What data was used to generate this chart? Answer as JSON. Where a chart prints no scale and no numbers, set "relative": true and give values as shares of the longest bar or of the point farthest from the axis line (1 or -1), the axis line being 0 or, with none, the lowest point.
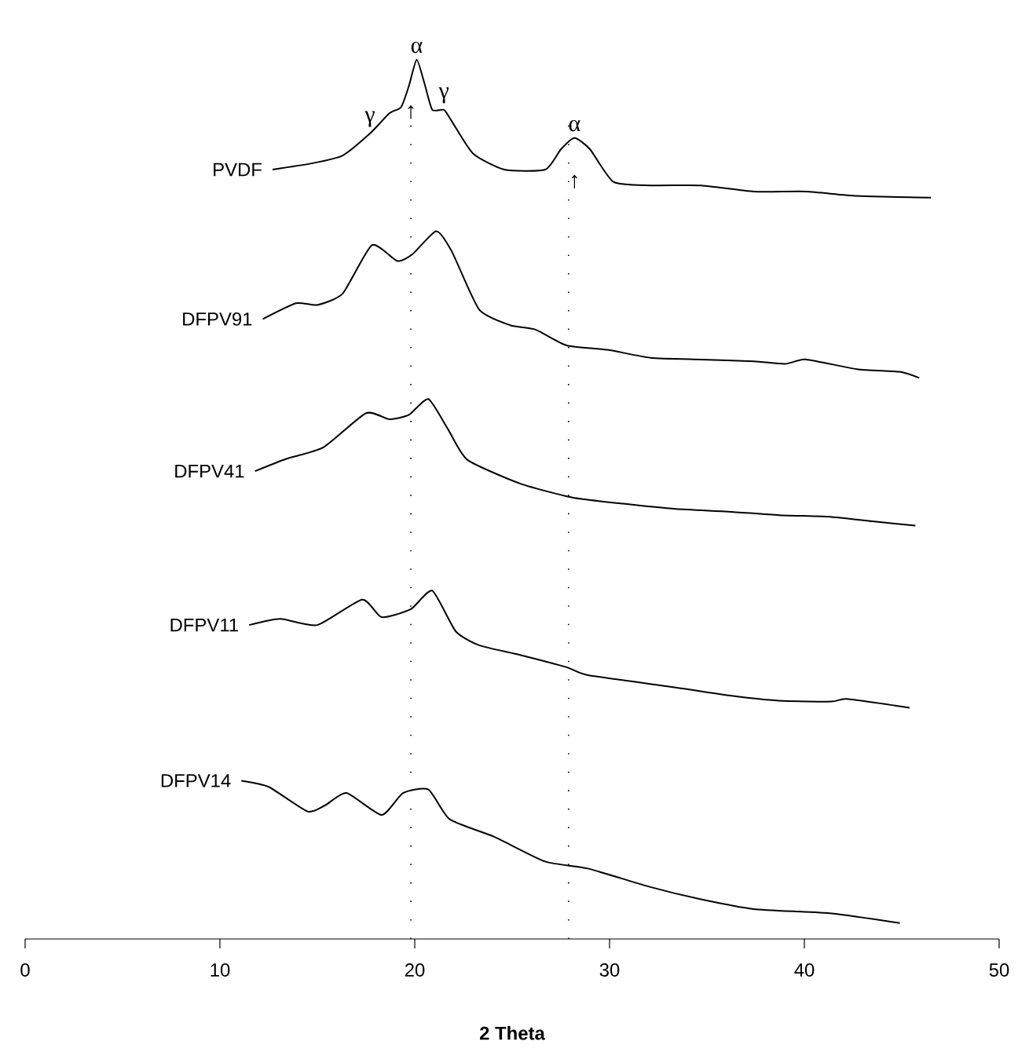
{
  "chart_data": {
    "type": "line",
    "relative": true,
    "xlabel": "2 Theta",
    "xlim": [
      0,
      50
    ],
    "xticks": [
      0,
      10,
      20,
      30,
      40,
      50
    ],
    "series": [
      {
        "name": "PVDF",
        "color": "#000000",
        "x": [
          12.7,
          14.7,
          16.3,
          17.7,
          18.7,
          19.3,
          19.7,
          20.1,
          20.5,
          20.9,
          21.5,
          21.9,
          23.0,
          24.6,
          26.7,
          27.5,
          28.2,
          29.0,
          30.2,
          32.1,
          34.7,
          37.4,
          40.1,
          42.7,
          46.5
        ],
        "values": [
          0.875,
          0.882,
          0.891,
          0.916,
          0.939,
          0.946,
          0.97,
          1.0,
          0.973,
          0.943,
          0.943,
          0.93,
          0.893,
          0.875,
          0.875,
          0.898,
          0.911,
          0.898,
          0.861,
          0.857,
          0.857,
          0.85,
          0.85,
          0.845,
          0.843
        ]
      },
      {
        "name": "DFPV91",
        "color": "#000000",
        "x": [
          12.2,
          13.9,
          15.0,
          16.3,
          17.8,
          19.1,
          19.9,
          21.1,
          21.9,
          23.3,
          24.9,
          26.2,
          27.8,
          29.9,
          32.1,
          34.7,
          37.4,
          39.0,
          40.1,
          42.7,
          44.9,
          45.9
        ],
        "values": [
          0.705,
          0.723,
          0.721,
          0.734,
          0.789,
          0.771,
          0.779,
          0.805,
          0.782,
          0.716,
          0.698,
          0.693,
          0.675,
          0.67,
          0.661,
          0.659,
          0.657,
          0.654,
          0.659,
          0.648,
          0.645,
          0.638
        ]
      },
      {
        "name": "DFPV41",
        "color": "#000000",
        "x": [
          11.8,
          13.4,
          15.3,
          17.5,
          18.7,
          19.7,
          20.7,
          21.7,
          22.7,
          25.4,
          28.1,
          30.7,
          33.4,
          36.1,
          38.7,
          41.4,
          43.5,
          45.7
        ],
        "values": [
          0.532,
          0.546,
          0.559,
          0.598,
          0.591,
          0.596,
          0.614,
          0.58,
          0.545,
          0.518,
          0.502,
          0.495,
          0.489,
          0.486,
          0.482,
          0.48,
          0.475,
          0.47
        ]
      },
      {
        "name": "DFPV11",
        "color": "#000000",
        "x": [
          11.5,
          13.1,
          15.0,
          17.3,
          18.3,
          19.8,
          20.9,
          22.1,
          23.3,
          25.4,
          27.8,
          28.9,
          33.4,
          36.1,
          38.7,
          41.4,
          42.2,
          45.4
        ],
        "values": [
          0.357,
          0.364,
          0.357,
          0.386,
          0.366,
          0.375,
          0.396,
          0.35,
          0.334,
          0.323,
          0.309,
          0.3,
          0.286,
          0.277,
          0.271,
          0.27,
          0.273,
          0.263
        ]
      },
      {
        "name": "DFPV14",
        "color": "#000000",
        "x": [
          11.1,
          12.5,
          14.5,
          15.4,
          16.5,
          18.3,
          19.4,
          20.7,
          21.8,
          24.1,
          26.7,
          28.9,
          32.1,
          34.7,
          37.4,
          41.4,
          44.9
        ],
        "values": [
          0.18,
          0.173,
          0.145,
          0.152,
          0.166,
          0.141,
          0.166,
          0.17,
          0.136,
          0.116,
          0.088,
          0.08,
          0.059,
          0.045,
          0.034,
          0.029,
          0.018
        ]
      }
    ],
    "ref_lines": [
      {
        "axis": "x",
        "value": 19.8,
        "line_style": "dotted"
      },
      {
        "axis": "x",
        "value": 27.9,
        "line_style": "dotted"
      }
    ],
    "annotations": [
      {
        "text": "α",
        "x": 20.1,
        "y": 1.0
      },
      {
        "text": "γ",
        "x": 17.7,
        "y": 0.916
      },
      {
        "text": "γ",
        "x": 21.5,
        "y": 0.943
      },
      {
        "text": "↑",
        "x": 19.8,
        "y": 0.925
      },
      {
        "text": "α",
        "x": 28.2,
        "y": 0.911
      },
      {
        "text": "↑",
        "x": 28.2,
        "y": 0.846
      }
    ]
  }
}
